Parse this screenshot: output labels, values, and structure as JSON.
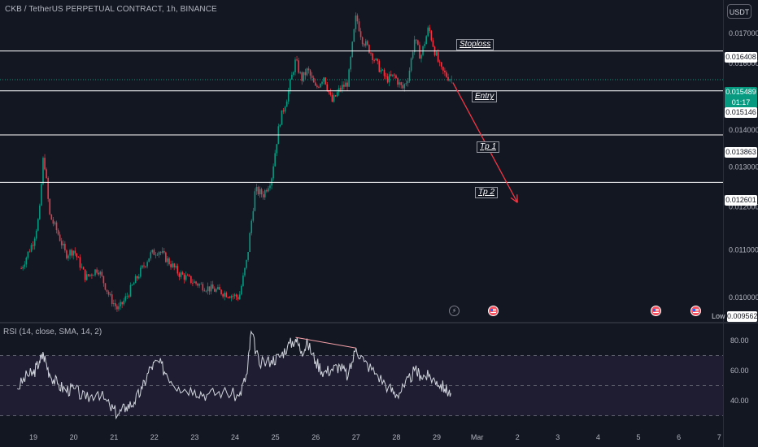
{
  "header": {
    "symbol": "CKB / TetherUS PERPETUAL CONTRACT, 1h, BINANCE"
  },
  "currency": "USDT",
  "rsi_header": "RSI (14, close, SMA, 14, 2)",
  "price_scale": {
    "ticks": [
      "0.017000",
      "0.016000",
      "0.014000",
      "0.013000",
      "0.012000",
      "0.011000",
      "0.010000"
    ],
    "current_price": "0.015489",
    "countdown": "01:17",
    "low_label": "Low",
    "low_value": "0.009562"
  },
  "rsi_scale": {
    "ticks": [
      "80.00",
      "60.00",
      "40.00"
    ]
  },
  "time_axis": {
    "labels": [
      "19",
      "20",
      "21",
      "22",
      "23",
      "24",
      "25",
      "26",
      "27",
      "28",
      "29",
      "Mar",
      "2",
      "3",
      "4",
      "5",
      "6",
      "7"
    ]
  },
  "colors": {
    "up": "#089981",
    "down": "#f23645",
    "rsi": "#d1d4dc",
    "arrow": "#f23645",
    "background": "#131722"
  },
  "chart_data": {
    "type": "candlestick",
    "title": "CKB / TetherUS PERPETUAL CONTRACT, 1h, BINANCE",
    "timeframe": "1h",
    "ylim": [
      0.0094,
      0.0177
    ],
    "x_range_days": [
      18.7,
      31.0
    ],
    "price_path": [
      [
        18.7,
        0.0106
      ],
      [
        19.0,
        0.0112
      ],
      [
        19.15,
        0.0118
      ],
      [
        19.25,
        0.0133
      ],
      [
        19.3,
        0.0129
      ],
      [
        19.4,
        0.0118
      ],
      [
        19.6,
        0.0114
      ],
      [
        19.8,
        0.0109
      ],
      [
        20.0,
        0.011
      ],
      [
        20.3,
        0.0104
      ],
      [
        20.6,
        0.0106
      ],
      [
        20.9,
        0.01
      ],
      [
        21.1,
        0.00975
      ],
      [
        21.3,
        0.01
      ],
      [
        21.5,
        0.0103
      ],
      [
        21.7,
        0.0106
      ],
      [
        21.9,
        0.0109
      ],
      [
        22.1,
        0.011
      ],
      [
        22.3,
        0.0108
      ],
      [
        22.6,
        0.0105
      ],
      [
        23.0,
        0.0103
      ],
      [
        23.3,
        0.0102
      ],
      [
        23.7,
        0.0101
      ],
      [
        24.1,
        0.01
      ],
      [
        24.3,
        0.0108
      ],
      [
        24.5,
        0.0124
      ],
      [
        24.7,
        0.0123
      ],
      [
        24.9,
        0.0127
      ],
      [
        25.1,
        0.0142
      ],
      [
        25.3,
        0.015
      ],
      [
        25.5,
        0.0161
      ],
      [
        25.65,
        0.0155
      ],
      [
        25.8,
        0.0158
      ],
      [
        26.0,
        0.0152
      ],
      [
        26.2,
        0.0156
      ],
      [
        26.4,
        0.0148
      ],
      [
        26.6,
        0.0152
      ],
      [
        26.8,
        0.0154
      ],
      [
        27.0,
        0.0176
      ],
      [
        27.15,
        0.0168
      ],
      [
        27.35,
        0.0164
      ],
      [
        27.55,
        0.0159
      ],
      [
        27.75,
        0.0155
      ],
      [
        27.95,
        0.0156
      ],
      [
        28.15,
        0.0152
      ],
      [
        28.3,
        0.0156
      ],
      [
        28.45,
        0.0168
      ],
      [
        28.6,
        0.0162
      ],
      [
        28.8,
        0.0172
      ],
      [
        28.95,
        0.0164
      ],
      [
        29.1,
        0.0158
      ],
      [
        29.25,
        0.0156
      ],
      [
        29.38,
        0.01549
      ]
    ],
    "low": 0.009562,
    "last_price": 0.015489,
    "levels": [
      {
        "name": "Stoploss",
        "price": 0.016408
      },
      {
        "name": "Entry",
        "price": 0.015146
      },
      {
        "name": "Tp 1",
        "price": 0.013863
      },
      {
        "name": "Tp 2",
        "price": 0.012601
      }
    ],
    "projection_arrow": {
      "from": [
        29.4,
        0.0154
      ],
      "to": [
        31.0,
        0.0121
      ]
    },
    "rsi": {
      "ylim": [
        20,
        90
      ],
      "bands": [
        70,
        50,
        30
      ],
      "path": [
        [
          18.6,
          48
        ],
        [
          18.85,
          57
        ],
        [
          19.0,
          58
        ],
        [
          19.15,
          66
        ],
        [
          19.25,
          71
        ],
        [
          19.4,
          58
        ],
        [
          19.6,
          51
        ],
        [
          19.8,
          47
        ],
        [
          20.0,
          48
        ],
        [
          20.3,
          41
        ],
        [
          20.6,
          46
        ],
        [
          20.9,
          36
        ],
        [
          21.1,
          31
        ],
        [
          21.3,
          36
        ],
        [
          21.5,
          39
        ],
        [
          21.7,
          48
        ],
        [
          21.9,
          62
        ],
        [
          22.1,
          66
        ],
        [
          22.3,
          58
        ],
        [
          22.6,
          49
        ],
        [
          23.0,
          47
        ],
        [
          23.3,
          44
        ],
        [
          23.7,
          46
        ],
        [
          24.1,
          43
        ],
        [
          24.3,
          58
        ],
        [
          24.4,
          86
        ],
        [
          24.6,
          64
        ],
        [
          24.9,
          67
        ],
        [
          25.1,
          69
        ],
        [
          25.3,
          76
        ],
        [
          25.5,
          81
        ],
        [
          25.65,
          73
        ],
        [
          25.8,
          78
        ],
        [
          26.0,
          66
        ],
        [
          26.2,
          59
        ],
        [
          26.4,
          61
        ],
        [
          26.6,
          63
        ],
        [
          26.8,
          56
        ],
        [
          27.0,
          75
        ],
        [
          27.2,
          66
        ],
        [
          27.5,
          58
        ],
        [
          27.8,
          49
        ],
        [
          28.0,
          44
        ],
        [
          28.2,
          49
        ],
        [
          28.45,
          60
        ],
        [
          28.6,
          57
        ],
        [
          28.8,
          56
        ],
        [
          29.0,
          53
        ],
        [
          29.2,
          48
        ],
        [
          29.35,
          45
        ]
      ],
      "divergence": {
        "from": [
          25.5,
          81
        ],
        "to": [
          27.0,
          75
        ]
      }
    }
  }
}
